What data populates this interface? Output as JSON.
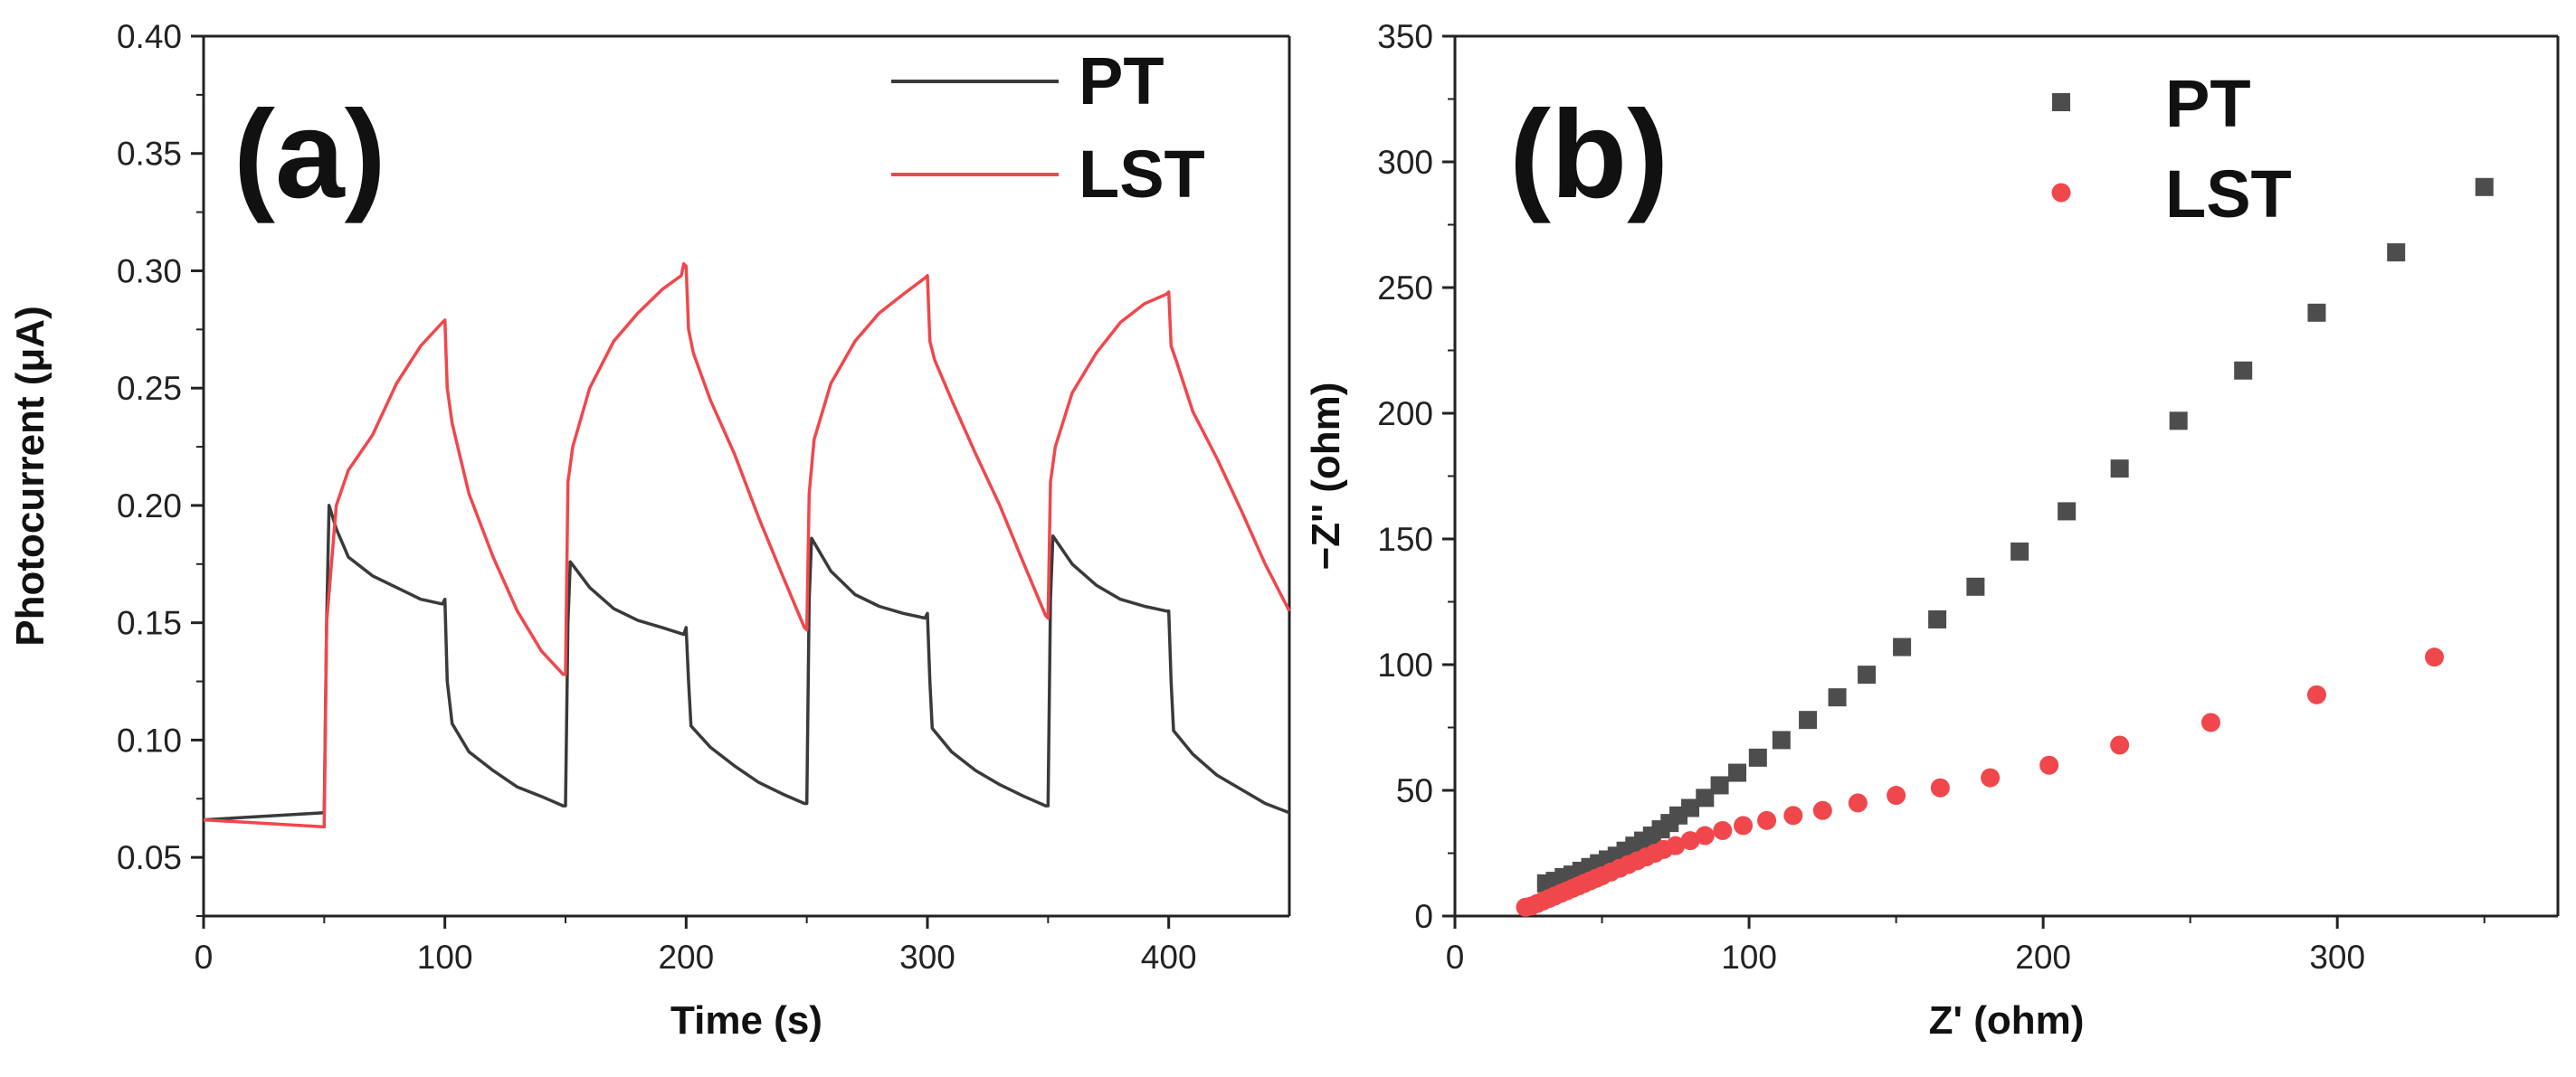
{
  "chart_data": [
    {
      "panel": "(a)",
      "type": "line",
      "xlabel": "Time (s)",
      "ylabel": "Photocurrent (μA)",
      "xlim": [
        0,
        450
      ],
      "ylim": [
        0.025,
        0.4
      ],
      "xticks": [
        0,
        100,
        200,
        300,
        400
      ],
      "xtick_labels": [
        "0",
        "100",
        "200",
        "300",
        "400"
      ],
      "yticks": [
        0.05,
        0.1,
        0.15,
        0.2,
        0.25,
        0.3,
        0.35,
        0.4
      ],
      "ytick_labels": [
        "0.05",
        "0.10",
        "0.15",
        "0.20",
        "0.25",
        "0.30",
        "0.35",
        "0.40"
      ],
      "legend_position": "top-right",
      "series": [
        {
          "name": "PT",
          "color": "#3a3a3a",
          "points": [
            [
              0,
              0.066
            ],
            [
              50,
              0.069
            ],
            [
              51,
              0.15
            ],
            [
              52,
              0.2
            ],
            [
              55,
              0.19
            ],
            [
              60,
              0.178
            ],
            [
              70,
              0.17
            ],
            [
              80,
              0.165
            ],
            [
              90,
              0.16
            ],
            [
              99,
              0.158
            ],
            [
              100,
              0.16
            ],
            [
              101,
              0.125
            ],
            [
              103,
              0.107
            ],
            [
              110,
              0.095
            ],
            [
              120,
              0.087
            ],
            [
              130,
              0.08
            ],
            [
              140,
              0.076
            ],
            [
              149,
              0.072
            ],
            [
              150,
              0.072
            ],
            [
              151,
              0.15
            ],
            [
              152,
              0.176
            ],
            [
              160,
              0.165
            ],
            [
              170,
              0.156
            ],
            [
              180,
              0.151
            ],
            [
              190,
              0.148
            ],
            [
              199,
              0.145
            ],
            [
              200,
              0.148
            ],
            [
              201,
              0.125
            ],
            [
              202,
              0.106
            ],
            [
              210,
              0.097
            ],
            [
              220,
              0.089
            ],
            [
              230,
              0.082
            ],
            [
              240,
              0.077
            ],
            [
              249,
              0.073
            ],
            [
              250,
              0.073
            ],
            [
              251,
              0.16
            ],
            [
              252,
              0.186
            ],
            [
              260,
              0.172
            ],
            [
              270,
              0.162
            ],
            [
              280,
              0.157
            ],
            [
              290,
              0.154
            ],
            [
              299,
              0.152
            ],
            [
              300,
              0.154
            ],
            [
              301,
              0.125
            ],
            [
              302,
              0.105
            ],
            [
              310,
              0.095
            ],
            [
              320,
              0.087
            ],
            [
              330,
              0.081
            ],
            [
              340,
              0.076
            ],
            [
              349,
              0.072
            ],
            [
              350,
              0.072
            ],
            [
              351,
              0.16
            ],
            [
              352,
              0.187
            ],
            [
              360,
              0.175
            ],
            [
              370,
              0.166
            ],
            [
              380,
              0.16
            ],
            [
              390,
              0.157
            ],
            [
              399,
              0.155
            ],
            [
              400,
              0.155
            ],
            [
              401,
              0.125
            ],
            [
              402,
              0.104
            ],
            [
              410,
              0.094
            ],
            [
              420,
              0.085
            ],
            [
              430,
              0.079
            ],
            [
              440,
              0.073
            ],
            [
              450,
              0.069
            ]
          ]
        },
        {
          "name": "LST",
          "color": "#f0474c",
          "points": [
            [
              0,
              0.066
            ],
            [
              50,
              0.063
            ],
            [
              51,
              0.15
            ],
            [
              53,
              0.175
            ],
            [
              55,
              0.2
            ],
            [
              60,
              0.215
            ],
            [
              70,
              0.23
            ],
            [
              80,
              0.252
            ],
            [
              90,
              0.268
            ],
            [
              99,
              0.278
            ],
            [
              100,
              0.279
            ],
            [
              101,
              0.25
            ],
            [
              103,
              0.235
            ],
            [
              110,
              0.205
            ],
            [
              120,
              0.178
            ],
            [
              130,
              0.155
            ],
            [
              140,
              0.138
            ],
            [
              149,
              0.128
            ],
            [
              150,
              0.128
            ],
            [
              151,
              0.21
            ],
            [
              153,
              0.225
            ],
            [
              160,
              0.25
            ],
            [
              170,
              0.27
            ],
            [
              180,
              0.282
            ],
            [
              190,
              0.292
            ],
            [
              198,
              0.298
            ],
            [
              199,
              0.303
            ],
            [
              200,
              0.302
            ],
            [
              201,
              0.275
            ],
            [
              203,
              0.265
            ],
            [
              210,
              0.245
            ],
            [
              220,
              0.222
            ],
            [
              230,
              0.195
            ],
            [
              240,
              0.17
            ],
            [
              249,
              0.148
            ],
            [
              250,
              0.147
            ],
            [
              251,
              0.205
            ],
            [
              253,
              0.228
            ],
            [
              260,
              0.252
            ],
            [
              270,
              0.27
            ],
            [
              280,
              0.282
            ],
            [
              290,
              0.29
            ],
            [
              299,
              0.297
            ],
            [
              300,
              0.298
            ],
            [
              301,
              0.27
            ],
            [
              303,
              0.262
            ],
            [
              310,
              0.245
            ],
            [
              320,
              0.222
            ],
            [
              330,
              0.2
            ],
            [
              340,
              0.175
            ],
            [
              349,
              0.153
            ],
            [
              350,
              0.152
            ],
            [
              351,
              0.21
            ],
            [
              353,
              0.225
            ],
            [
              360,
              0.248
            ],
            [
              370,
              0.265
            ],
            [
              380,
              0.278
            ],
            [
              390,
              0.286
            ],
            [
              399,
              0.29
            ],
            [
              400,
              0.291
            ],
            [
              401,
              0.268
            ],
            [
              403,
              0.262
            ],
            [
              410,
              0.24
            ],
            [
              420,
              0.22
            ],
            [
              430,
              0.198
            ],
            [
              440,
              0.175
            ],
            [
              450,
              0.155
            ]
          ]
        }
      ]
    },
    {
      "panel": "(b)",
      "type": "scatter",
      "xlabel": "Z' (ohm)",
      "ylabel": "−Z'' (ohm)",
      "xlim": [
        0,
        375
      ],
      "ylim": [
        0,
        350
      ],
      "xticks": [
        0,
        100,
        200,
        300
      ],
      "xtick_labels": [
        "0",
        "100",
        "200",
        "300"
      ],
      "yticks": [
        0,
        50,
        100,
        150,
        200,
        250,
        300,
        350
      ],
      "ytick_labels": [
        "0",
        "50",
        "100",
        "150",
        "200",
        "250",
        "300",
        "350"
      ],
      "legend_position": "top-center",
      "series": [
        {
          "name": "PT",
          "marker": "square",
          "color": "#4d4d4d",
          "points": [
            [
              31,
              13
            ],
            [
              34,
              14
            ],
            [
              37,
              15.5
            ],
            [
              40,
              16.5
            ],
            [
              43,
              18
            ],
            [
              46,
              19.5
            ],
            [
              49,
              21
            ],
            [
              52,
              22.5
            ],
            [
              55,
              24
            ],
            [
              58,
              26
            ],
            [
              61,
              28
            ],
            [
              64,
              30
            ],
            [
              67,
              32
            ],
            [
              70,
              34.5
            ],
            [
              73,
              37
            ],
            [
              76,
              40
            ],
            [
              80,
              43
            ],
            [
              85,
              47
            ],
            [
              90,
              52
            ],
            [
              96,
              57
            ],
            [
              103,
              63
            ],
            [
              111,
              70
            ],
            [
              120,
              78
            ],
            [
              130,
              87
            ],
            [
              140,
              96
            ],
            [
              152,
              107
            ],
            [
              164,
              118
            ],
            [
              177,
              131
            ],
            [
              192,
              145
            ],
            [
              208,
              161
            ],
            [
              226,
              178
            ],
            [
              246,
              197
            ],
            [
              268,
              217
            ],
            [
              293,
              240
            ],
            [
              320,
              264
            ],
            [
              350,
              290
            ]
          ]
        },
        {
          "name": "LST",
          "marker": "circle",
          "color": "#f0474c",
          "points": [
            [
              24,
              3.5
            ],
            [
              26,
              4
            ],
            [
              28,
              5
            ],
            [
              30,
              6
            ],
            [
              32,
              7
            ],
            [
              34,
              8
            ],
            [
              36,
              9
            ],
            [
              38,
              10
            ],
            [
              40,
              11
            ],
            [
              42,
              12
            ],
            [
              44,
              13
            ],
            [
              46,
              14
            ],
            [
              48,
              15
            ],
            [
              50,
              16
            ],
            [
              53,
              17.5
            ],
            [
              56,
              19
            ],
            [
              59,
              20.5
            ],
            [
              62,
              22
            ],
            [
              65,
              23.5
            ],
            [
              68,
              25
            ],
            [
              71,
              26.5
            ],
            [
              75,
              28
            ],
            [
              80,
              30
            ],
            [
              85,
              32
            ],
            [
              91,
              34
            ],
            [
              98,
              36
            ],
            [
              106,
              38
            ],
            [
              115,
              40
            ],
            [
              125,
              42
            ],
            [
              137,
              45
            ],
            [
              150,
              48
            ],
            [
              165,
              51
            ],
            [
              182,
              55
            ],
            [
              202,
              60
            ],
            [
              226,
              68
            ],
            [
              257,
              77
            ],
            [
              293,
              88
            ],
            [
              333,
              103
            ]
          ]
        }
      ]
    }
  ]
}
